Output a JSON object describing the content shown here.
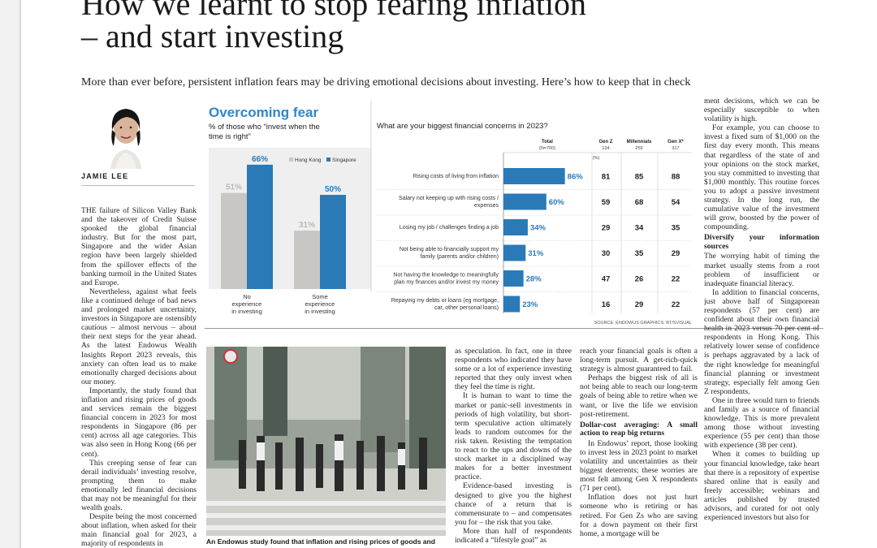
{
  "headline": {
    "line1": "How we learnt to stop fearing inflation",
    "line2": "– and start investing"
  },
  "standfirst": "More than ever before, persistent inflation fears may be driving emotional decisions about investing. Here’s how to keep that in check",
  "author": "JAMIE LEE",
  "col1": [
    "THE failure of Silicon Valley Bank and the takeover of Credit Suisse spooked the global financial industry. But for the most part, Singapore and the wider Asian region have been largely shielded from the spillover effects of the banking turmoil in the United States and Europe.",
    "Nevertheless, against what feels like a continued deluge of bad news and prolonged market uncertainty, investors in Singapore are ostensibly cautious – almost nervous – about their next steps for the year ahead. As the latest Endowus Wealth Insights Report 2023 reveals, this anxiety can often lead us to make emotionally charged decisions about our money.",
    "Importantly, the study found that inflation and rising prices of goods and services remain the biggest financial concern in 2023 for most respondents in Singapore (86 per cent) across all age categories. This was also seen in Hong Kong (66 per cent).",
    "This creeping sense of fear can derail individuals’ investing resolve, prompting them to make emotionally led financial decisions that may not be meaningful for their wealth goals.",
    "Despite being the most concerned about inflation, when asked for their main financial goal for 2023, a majority of respondents in"
  ],
  "col3": [
    "as speculation. In fact, one in three respondents who indicated they have some or a lot of experience investing reported that they only invest when they feel the time is right.",
    "It is human to want to time the market or panic-sell investments in periods of high volatility, but short-term speculative action ultimately leads to random outcomes for the risk taken. Resisting the temptation to react to the ups and downs of the stock market in a disciplined way makes for a better investment practice.",
    "Evidence-based investing is designed to give you the highest chance of a return that is commensurate to – and compensates you for – the risk that you take.",
    "More than half of respondents indicated a “lifestyle goal” as"
  ],
  "col4": {
    "p1": "reach your financial goals is often a long-term pursuit. A get-rich-quick strategy is almost guaranteed to fail.",
    "p2": "Perhaps the biggest risk of all is not being able to reach our long-term goals of being able to retire when we want, or live the life we envision post-retirement.",
    "heading": "Dollar-cost averaging: A small action to reap big returns",
    "p3": "In Endowus’ report, those looking to invest less in 2023 point to market volatility and uncertainties as their biggest deterrents; these worries are most felt among Gen X respondents (71 per cent).",
    "p4": "Inflation does not just hurt someone who is retiring or has retired. For Gen Zs who are saving for a down payment on their first home, a mortgage will be"
  },
  "col5": {
    "p1": "ment decisions, which we can be especially susceptible to when volatility is high.",
    "p2": "For example, you can choose to invest a fixed sum of $1,000 on the first day every month. This means that regardless of the state of and your opinions on the stock market, you stay committed to investing that $1,000 monthly. This routine forces you to adopt a passive investment strategy. In the long run, the cumulative value of the investment will grow, boosted by the power of compounding.",
    "heading": "Diversify your information sources",
    "p3": "The worrying habit of timing the market usually stems from a root problem of insufficient or inadequate financial literacy.",
    "p4": "In addition to financial concerns, just above half of Singaporean respondents (57 per cent) are confident about their own financial health in 2023 versus 70 per cent of respondents in Hong Kong. This relatively lower sense of confidence is perhaps aggravated by a lack of the right knowledge for meaningful financial planning or investment strategy, especially felt among Gen Z respondents.",
    "p5": "One in three would turn to friends and family as a source of financial knowledge. This is more prevalent among those without investing experience (55 per cent) than those with experience (38 per cent).",
    "p6": "When it comes to building up your financial knowledge, take heart that there is a repository of expertise shared online that is easily and freely accessible; webinars and articles published by trusted advisors, and curated for not only experienced investors but also for"
  },
  "caption": "An Endowus study found that inflation and rising prices of goods and",
  "colors": {
    "hongkong": "#c9c7c3",
    "singapore": "#2a7ab8",
    "title": "#2f86c8",
    "bar": "#2a7ab8"
  },
  "chart_data": [
    {
      "type": "bar",
      "title": "Overcoming fear",
      "subtitle": "% of those who “invest when the time is right”",
      "categories": [
        "No experience in investing",
        "Some experience in investing"
      ],
      "series": [
        {
          "name": "Hong Kong",
          "values": [
            51,
            31
          ]
        },
        {
          "name": "Singapore",
          "values": [
            66,
            50
          ]
        }
      ],
      "value_labels": {
        "hongkong": [
          "51%",
          "31%"
        ],
        "singapore": [
          "66%",
          "50%"
        ]
      },
      "ylim": [
        0,
        75
      ],
      "legend": "top-right"
    },
    {
      "type": "table",
      "title": "What are your biggest financial concerns in 2023?",
      "columns": {
        "total": "Total",
        "total_n": "(N=700)",
        "genz": "Gen Z",
        "genz_n": "124",
        "mill": "Millennials",
        "mill_n": "259",
        "genx": "Gen X*",
        "genx_n": "317",
        "unit": "(%)"
      },
      "rows": [
        {
          "label": "Rising costs of living from inflation",
          "total": 86,
          "total_label": "86%",
          "genz": "81",
          "mill": "85",
          "genx": "88"
        },
        {
          "label": "Salary not keeping up with rising costs / expenses",
          "total": 60,
          "total_label": "60%",
          "genz": "59",
          "mill": "68",
          "genx": "54"
        },
        {
          "label": "Losing my job / challenges finding a job",
          "total": 34,
          "total_label": "34%",
          "genz": "29",
          "mill": "34",
          "genx": "35"
        },
        {
          "label": "Not being able to financially support my family (parents and/or children)",
          "total": 31,
          "total_label": "31%",
          "genz": "30",
          "mill": "35",
          "genx": "29"
        },
        {
          "label": "Not having the knowledge to meaningfully plan my finances and/or invest my money",
          "total": 28,
          "total_label": "28%",
          "genz": "47",
          "mill": "26",
          "genx": "22"
        },
        {
          "label": "Repaying my debts or loans (eg mortgage, car, other personal loans)",
          "total": 23,
          "total_label": "23%",
          "genz": "16",
          "mill": "29",
          "genx": "22"
        }
      ],
      "xlim": [
        0,
        100
      ],
      "source": "SOURCE: ENDOWUS   GRAPHICS: BT/SVISUAL"
    }
  ]
}
